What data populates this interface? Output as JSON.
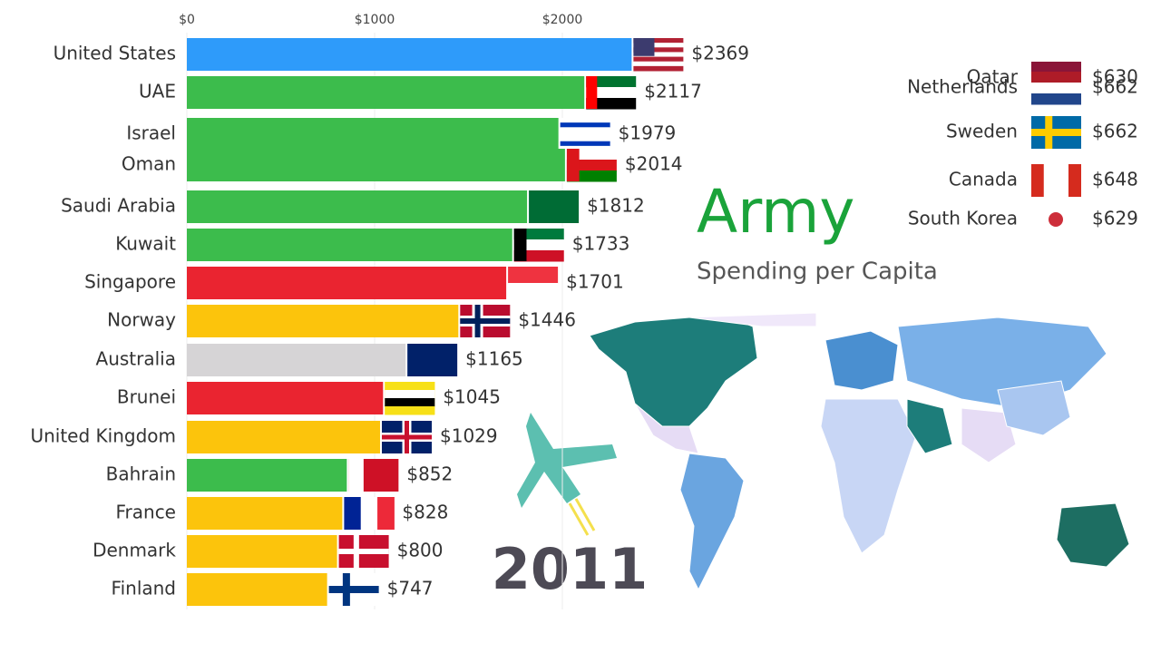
{
  "chart_data": {
    "type": "bar",
    "orientation": "horizontal",
    "title": "Army",
    "subtitle": "Spending per Capita",
    "year": "2011",
    "categories": [
      "United States",
      "UAE",
      "Israel",
      "Oman",
      "Saudi Arabia",
      "Kuwait",
      "Singapore",
      "Norway",
      "Australia",
      "Brunei",
      "United Kingdom",
      "Bahrain",
      "France",
      "Denmark",
      "Finland"
    ],
    "values": [
      2369,
      2117,
      1979,
      2014,
      1812,
      1733,
      1701,
      1446,
      1165,
      1045,
      1029,
      852,
      828,
      800,
      747
    ],
    "value_labels": [
      "$2369",
      "$2117",
      "$1979",
      "$2014",
      "$1812",
      "$1733",
      "$1701",
      "$1446",
      "$1165",
      "$1045",
      "$1029",
      "$852",
      "$828",
      "$800",
      "$747"
    ],
    "colors": [
      "#2e9bfa",
      "#3cbc4c",
      "#3cbc4c",
      "#3cbc4c",
      "#3cbc4c",
      "#3cbc4c",
      "#ea2430",
      "#fcc40c",
      "#d6d4d6",
      "#ea2430",
      "#fcc40c",
      "#3cbc4c",
      "#fcc40c",
      "#fcc40c",
      "#fcc40c"
    ],
    "xlim": [
      0,
      2500
    ],
    "xticks": [
      {
        "value": 0,
        "label": "$0"
      },
      {
        "value": 1000,
        "label": "$1000"
      },
      {
        "value": 2000,
        "label": "$2000"
      }
    ],
    "side_list": {
      "categories": [
        "Qatar",
        "Netherlands",
        "Sweden",
        "Canada",
        "South Korea"
      ],
      "values": [
        630,
        662,
        662,
        648,
        629
      ],
      "value_labels": [
        "$630",
        "$662",
        "$662",
        "$648",
        "$629"
      ]
    }
  }
}
